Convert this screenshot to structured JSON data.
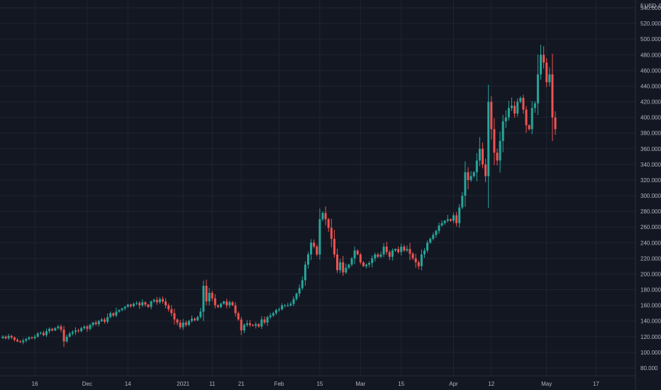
{
  "chart_data": {
    "type": "candlestick",
    "currency": "USD",
    "header_prefix": "5",
    "header_value": "0",
    "ylim": [
      70,
      550
    ],
    "y_ticks": [
      {
        "v": 80,
        "label": "80.000"
      },
      {
        "v": 100,
        "label": "100.000"
      },
      {
        "v": 120,
        "label": "120.000"
      },
      {
        "v": 140,
        "label": "140.000"
      },
      {
        "v": 160,
        "label": "160.000"
      },
      {
        "v": 180,
        "label": "180.000"
      },
      {
        "v": 200,
        "label": "200.000"
      },
      {
        "v": 220,
        "label": "220.000"
      },
      {
        "v": 240,
        "label": "240.000"
      },
      {
        "v": 260,
        "label": "260.000"
      },
      {
        "v": 280,
        "label": "280.000"
      },
      {
        "v": 300,
        "label": "300.000"
      },
      {
        "v": 320,
        "label": "320.000"
      },
      {
        "v": 340,
        "label": "340.000"
      },
      {
        "v": 360,
        "label": "360.000"
      },
      {
        "v": 380,
        "label": "380.000"
      },
      {
        "v": 400,
        "label": "400.000"
      },
      {
        "v": 420,
        "label": "420.000"
      },
      {
        "v": 440,
        "label": "440.000"
      },
      {
        "v": 460,
        "label": "460.000"
      },
      {
        "v": 480,
        "label": "480.000"
      },
      {
        "v": 500,
        "label": "500.000"
      },
      {
        "v": 520,
        "label": "520.000"
      },
      {
        "v": 540,
        "label": "540.000"
      }
    ],
    "x_ticks": [
      {
        "i": 11,
        "label": "16"
      },
      {
        "i": 29,
        "label": "Dec"
      },
      {
        "i": 43,
        "label": "14"
      },
      {
        "i": 62,
        "label": "2021"
      },
      {
        "i": 72,
        "label": "11"
      },
      {
        "i": 82,
        "label": "21"
      },
      {
        "i": 95,
        "label": "Feb"
      },
      {
        "i": 109,
        "label": "15"
      },
      {
        "i": 123,
        "label": "Mar"
      },
      {
        "i": 137,
        "label": "15"
      },
      {
        "i": 155,
        "label": "Apr"
      },
      {
        "i": 168,
        "label": "12"
      },
      {
        "i": 187,
        "label": "May"
      },
      {
        "i": 204,
        "label": "17"
      }
    ],
    "colors": {
      "up": "#26a69a",
      "down": "#ef5350",
      "background": "#131722",
      "grid": "#1f2433",
      "text": "#b2b5be"
    },
    "close": [
      120,
      118,
      121,
      119,
      116,
      114,
      113,
      115,
      117,
      119,
      118,
      120,
      124,
      125,
      122,
      127,
      130,
      128,
      131,
      133,
      129,
      114,
      120,
      124,
      126,
      128,
      127,
      131,
      133,
      130,
      135,
      138,
      136,
      140,
      142,
      139,
      145,
      150,
      147,
      152,
      154,
      156,
      158,
      161,
      159,
      162,
      163,
      160,
      164,
      161,
      158,
      165,
      167,
      164,
      168,
      165,
      160,
      155,
      150,
      142,
      138,
      132,
      138,
      135,
      140,
      143,
      141,
      145,
      152,
      185,
      165,
      176,
      169,
      160,
      158,
      162,
      165,
      160,
      164,
      160,
      150,
      142,
      128,
      135,
      137,
      135,
      134,
      136,
      133,
      142,
      138,
      145,
      147,
      150,
      154,
      155,
      160,
      160,
      160,
      162,
      168,
      175,
      182,
      192,
      212,
      225,
      240,
      235,
      225,
      270,
      278,
      270,
      259,
      245,
      225,
      205,
      215,
      202,
      208,
      212,
      220,
      230,
      225,
      215,
      210,
      212,
      214,
      220,
      225,
      222,
      225,
      235,
      228,
      222,
      230,
      232,
      228,
      235,
      230,
      232,
      226,
      220,
      215,
      210,
      225,
      230,
      240,
      245,
      250,
      255,
      262,
      265,
      268,
      270,
      268,
      275,
      265,
      285,
      300,
      330,
      320,
      325,
      330,
      345,
      360,
      340,
      325,
      420,
      385,
      355,
      345,
      370,
      395,
      400,
      412,
      415,
      405,
      420,
      425,
      410,
      390,
      385,
      412,
      418,
      455,
      480,
      470,
      445,
      455,
      400,
      385
    ]
  }
}
